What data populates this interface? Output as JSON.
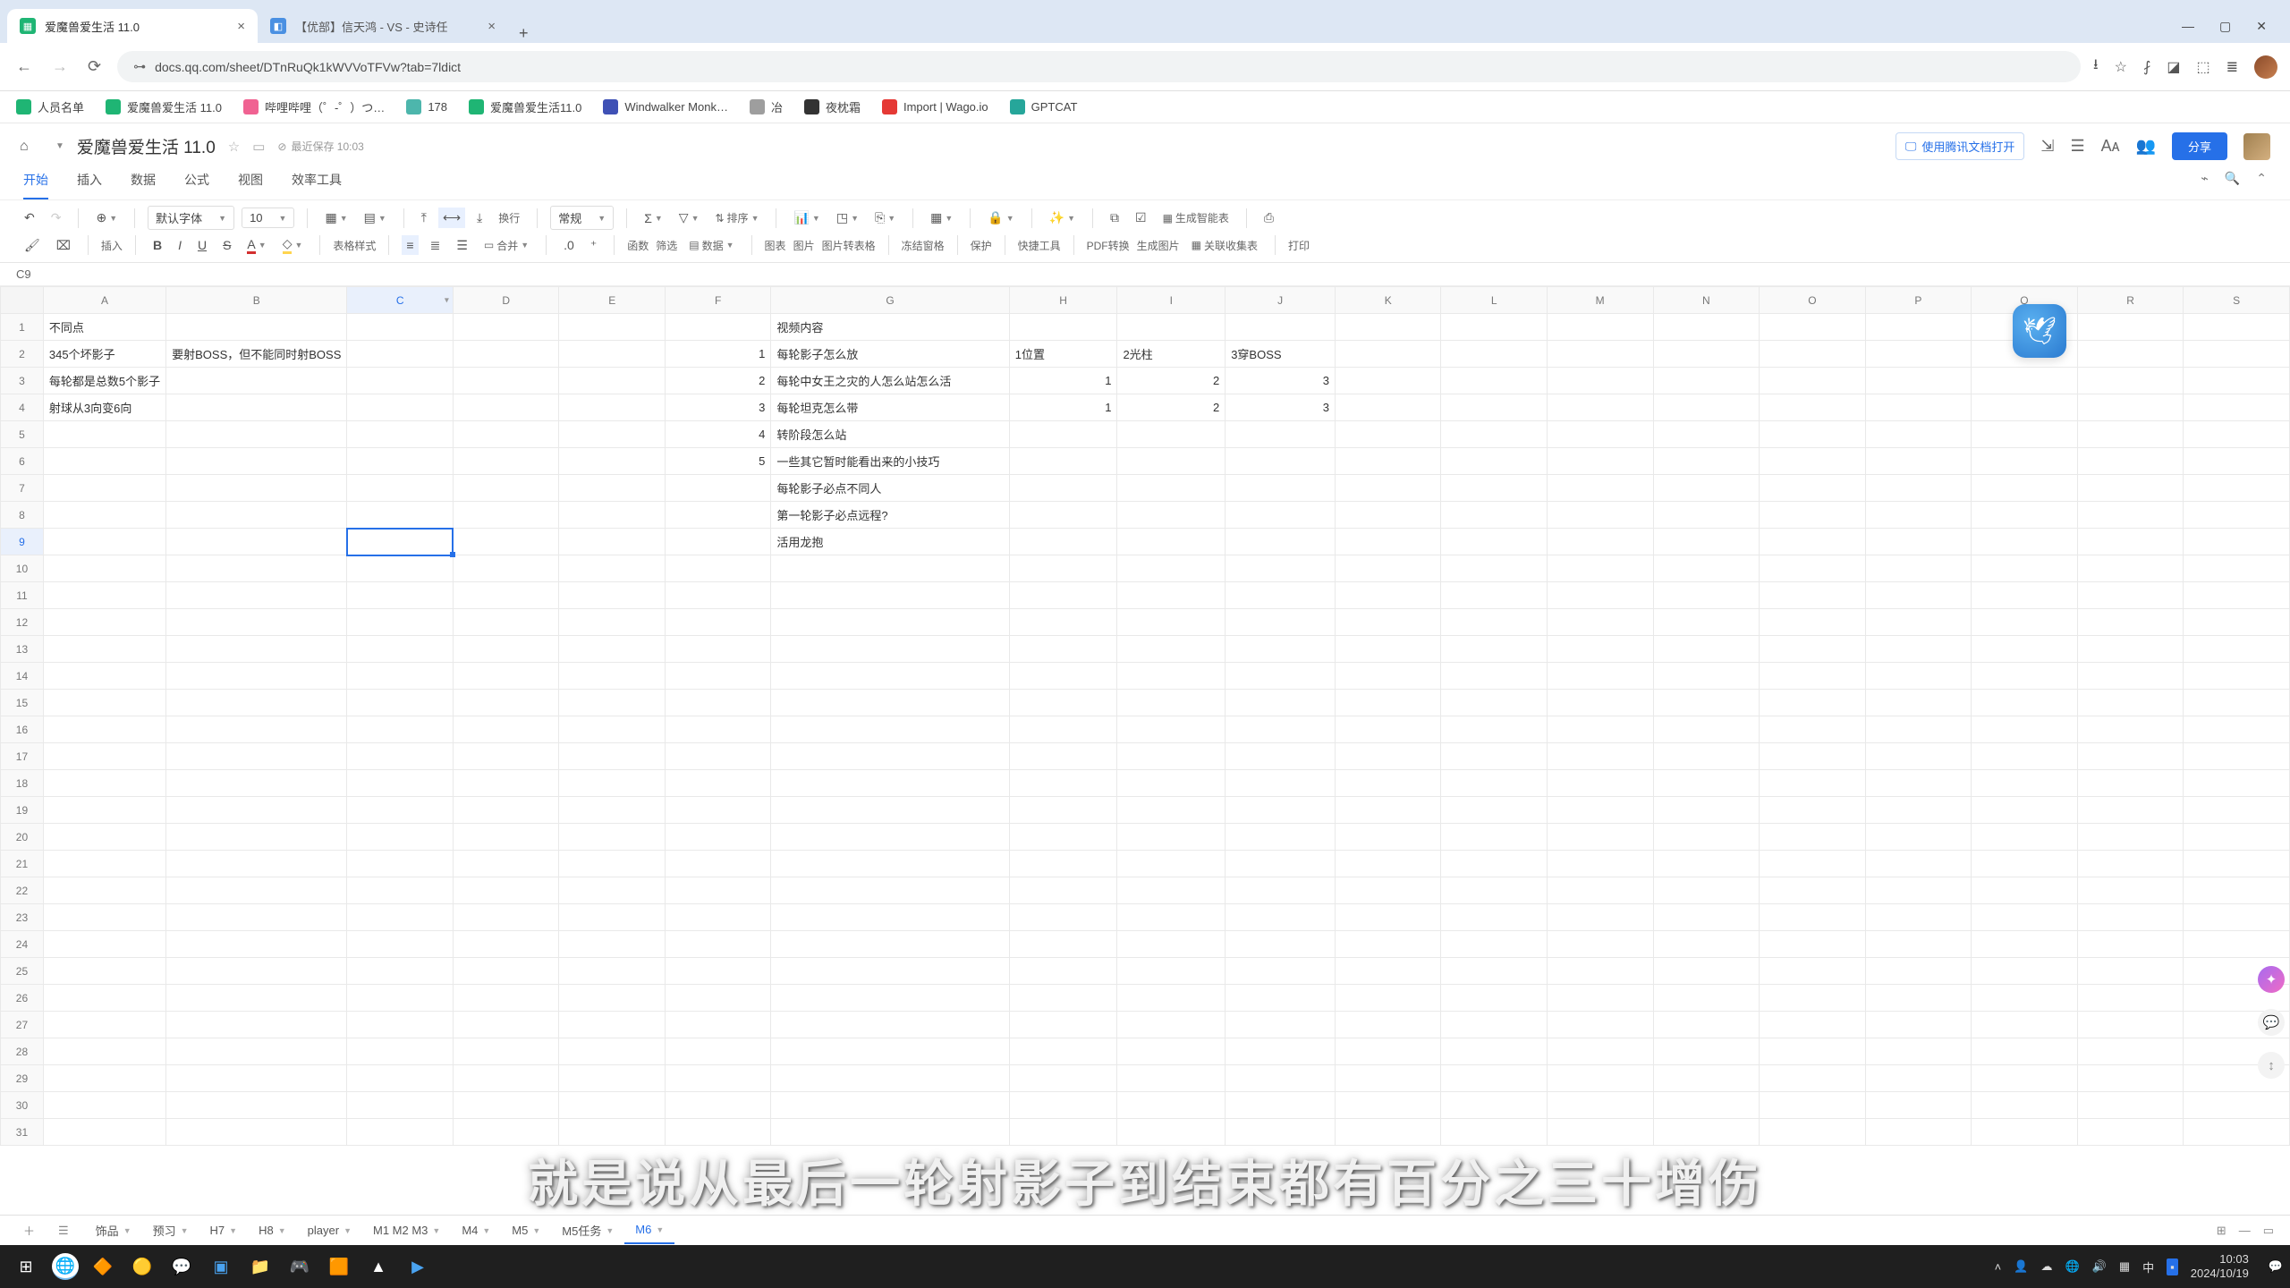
{
  "browser": {
    "tabs": [
      {
        "title": "爱魔兽爱生活 11.0",
        "icon_bg": "#1fb574",
        "active": true
      },
      {
        "title": "【优部】信天鸿 - VS - 史诗任",
        "icon_bg": "#4a90e2",
        "active": false
      }
    ],
    "url": "docs.qq.com/sheet/DTnRuQk1kWVVoTFVw?tab=7ldict"
  },
  "bookmarks": [
    {
      "label": "人员名单",
      "color": "#1fb574"
    },
    {
      "label": "爱魔兽爱生活 11.0",
      "color": "#1fb574"
    },
    {
      "label": "哔哩哔哩（゜-゜）つ…",
      "color": "#f06292"
    },
    {
      "label": "178",
      "color": "#4db6ac"
    },
    {
      "label": "爱魔兽爱生活11.0",
      "color": "#1fb574"
    },
    {
      "label": "Windwalker Monk…",
      "color": "#3f51b5"
    },
    {
      "label": "冶",
      "color": "#9e9e9e"
    },
    {
      "label": "夜枕霜",
      "color": "#333333"
    },
    {
      "label": "Import | Wago.io",
      "color": "#e53935"
    },
    {
      "label": "GPTCAT",
      "color": "#26a69a"
    }
  ],
  "doc": {
    "title": "爱魔兽爱生活 11.0",
    "save_status": "最近保存 10:03",
    "tencent_btn": "使用腾讯文档打开",
    "share": "分享"
  },
  "menus": [
    "开始",
    "插入",
    "数据",
    "公式",
    "视图",
    "效率工具"
  ],
  "toolbar": {
    "font": "默认字体",
    "size": "10",
    "format": "常规",
    "insert": "插入",
    "table_style": "表格样式",
    "wrap": "换行",
    "merge": "合并",
    "decimal": ".0",
    "func": "函数",
    "filter": "筛选",
    "sort": "排序",
    "data": "数据",
    "chart": "图表",
    "image": "图片",
    "img2table": "图片转表格",
    "freeze": "冻结窗格",
    "protect": "保护",
    "quick": "快捷工具",
    "pdf": "PDF转换",
    "genimg": "生成图片",
    "smart": "生成智能表",
    "collect": "关联收集表",
    "print": "打印"
  },
  "cell_ref": "C9",
  "columns": [
    "A",
    "B",
    "C",
    "D",
    "E",
    "F",
    "G",
    "H",
    "I",
    "J",
    "K",
    "L",
    "M",
    "N",
    "O",
    "P",
    "Q",
    "R",
    "S"
  ],
  "row_count": 31,
  "selected": {
    "col": "C",
    "row": 9
  },
  "cells": {
    "A1": "不同点",
    "A2": "345个坏影子",
    "B2": "要射BOSS，但不能同时射BOSS",
    "A3": "每轮都是总数5个影子",
    "A4": "射球从3向变6向",
    "F2": "1",
    "F3": "2",
    "F4": "3",
    "F5": "4",
    "F6": "5",
    "G1": "视频内容",
    "G2": "每轮影子怎么放",
    "G3": "每轮中女王之灾的人怎么站怎么活",
    "G4": "每轮坦克怎么带",
    "G5": "转阶段怎么站",
    "G6": "一些其它暂时能看出来的小技巧",
    "G7": "每轮影子必点不同人",
    "G8": "第一轮影子必点远程?",
    "G9": "活用龙抱",
    "H2": "1位置",
    "I2": "2光柱",
    "J2": "3穿BOSS",
    "H3": "1",
    "I3": "2",
    "J3": "3",
    "H4": "1",
    "I4": "2",
    "J4": "3"
  },
  "num_cells": [
    "F2",
    "F3",
    "F4",
    "F5",
    "F6",
    "H3",
    "I3",
    "J3",
    "H4",
    "I4",
    "J4"
  ],
  "subtitle": "就是说从最后一轮射影子到结束都有百分之三十增伤",
  "sheet_tabs": {
    "add": "+",
    "tabs": [
      {
        "label": "饰品"
      },
      {
        "label": "预习"
      },
      {
        "label": "H7"
      },
      {
        "label": "H8"
      },
      {
        "label": "player"
      },
      {
        "label": "M1 M2 M3"
      },
      {
        "label": "M4"
      },
      {
        "label": "M5"
      },
      {
        "label": "M5任务"
      },
      {
        "label": "M6",
        "active": true
      }
    ]
  },
  "taskbar": {
    "time": "10:03",
    "date": "2024/10/19"
  }
}
